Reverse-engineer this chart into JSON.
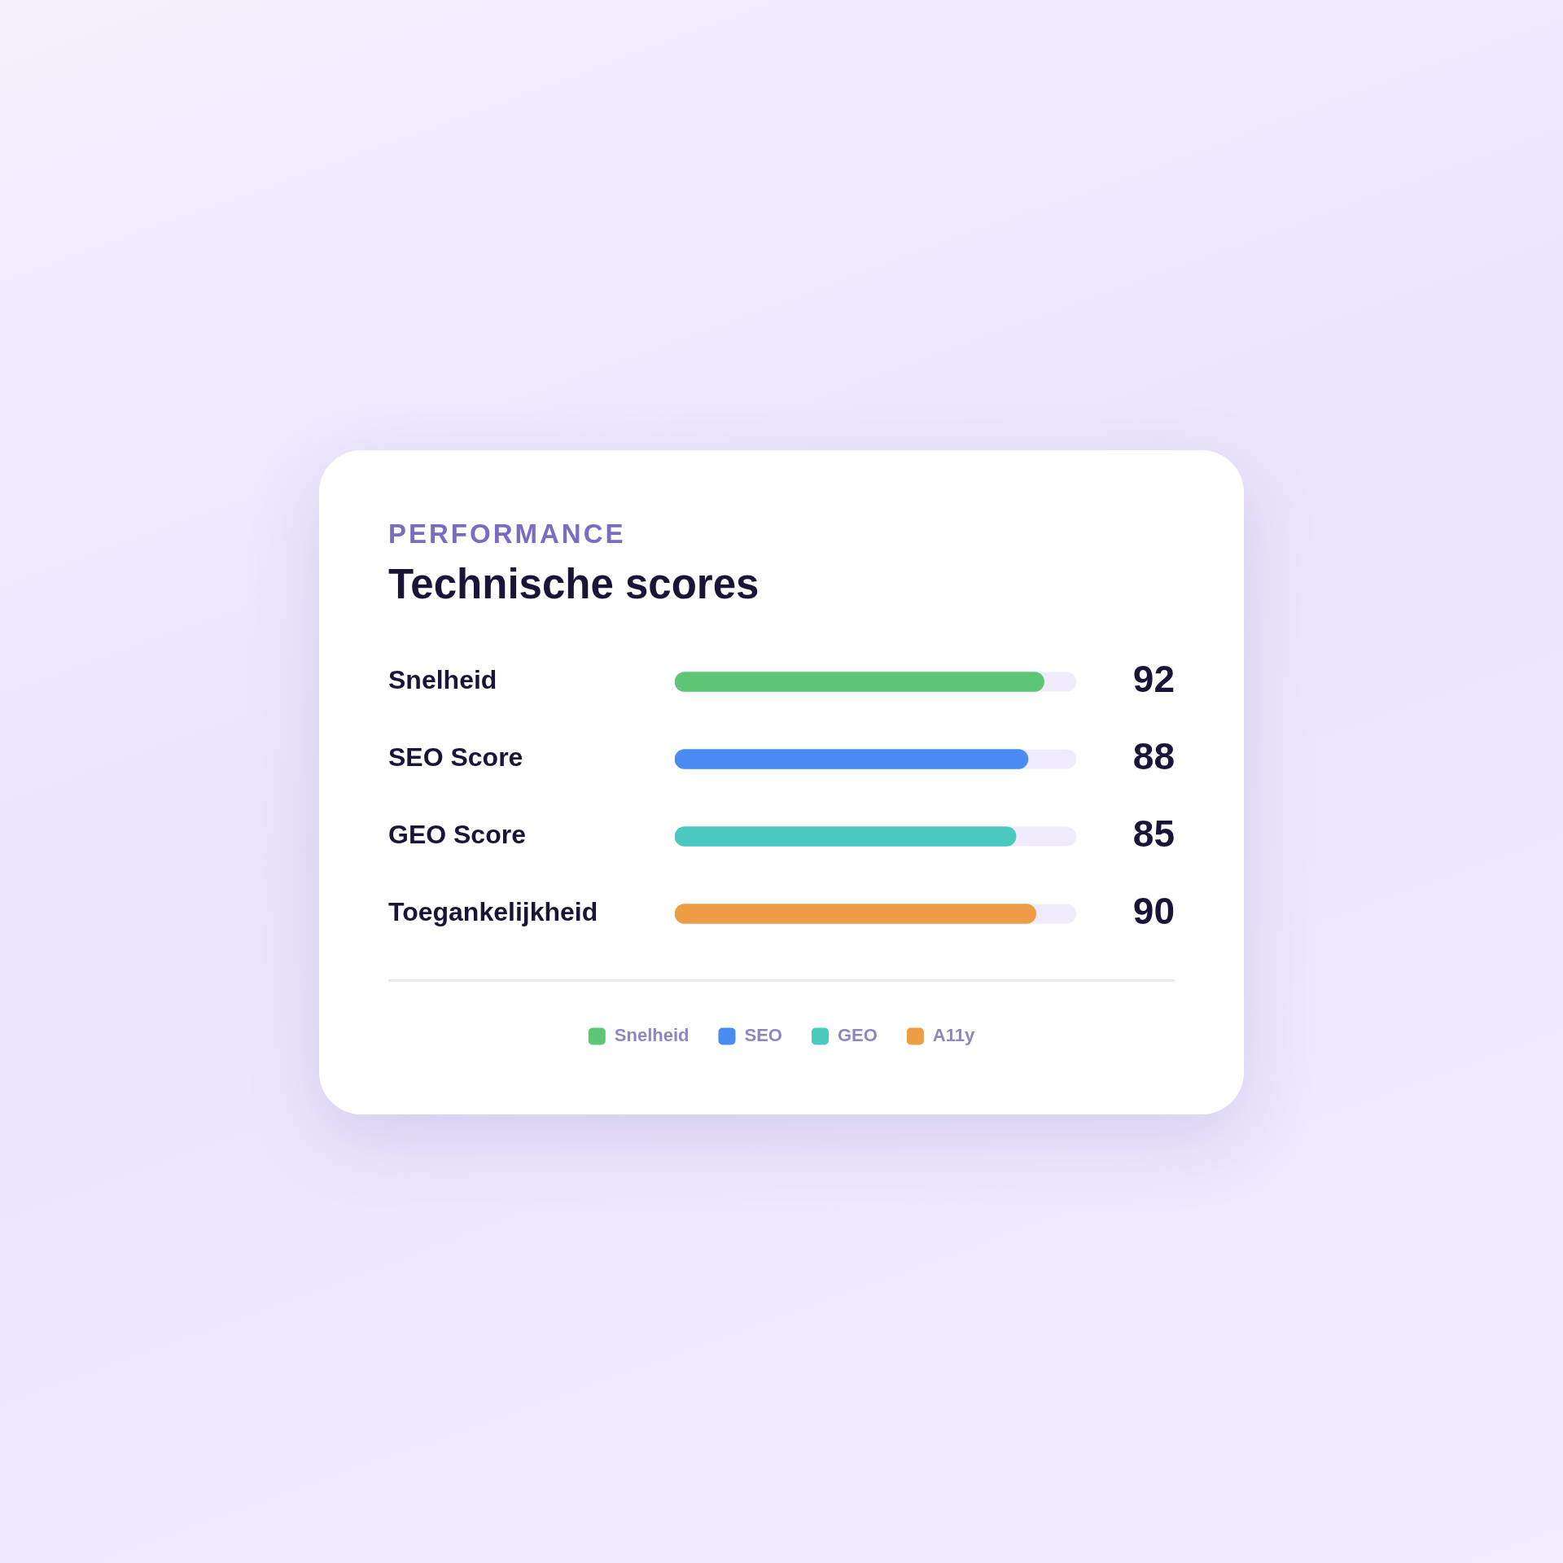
{
  "chart_data": {
    "type": "bar",
    "orientation": "horizontal",
    "subtitle": "PERFORMANCE",
    "title": "Technische scores",
    "categories": [
      "Snelheid",
      "SEO Score",
      "GEO Score",
      "Toegankelijkheid"
    ],
    "series": [
      {
        "name": "Snelheid",
        "color": "#5ec777",
        "values": [
          92,
          null,
          null,
          null
        ]
      },
      {
        "name": "SEO",
        "color": "#4a8bf2",
        "values": [
          null,
          88,
          null,
          null
        ]
      },
      {
        "name": "GEO",
        "color": "#4ac9bf",
        "values": [
          null,
          null,
          85,
          null
        ]
      },
      {
        "name": "A11y",
        "color": "#ee9c45",
        "values": [
          null,
          null,
          null,
          90
        ]
      }
    ],
    "xlim": [
      0,
      100
    ],
    "tick_labels": "y",
    "data_labels": true,
    "legend": "bottom"
  }
}
